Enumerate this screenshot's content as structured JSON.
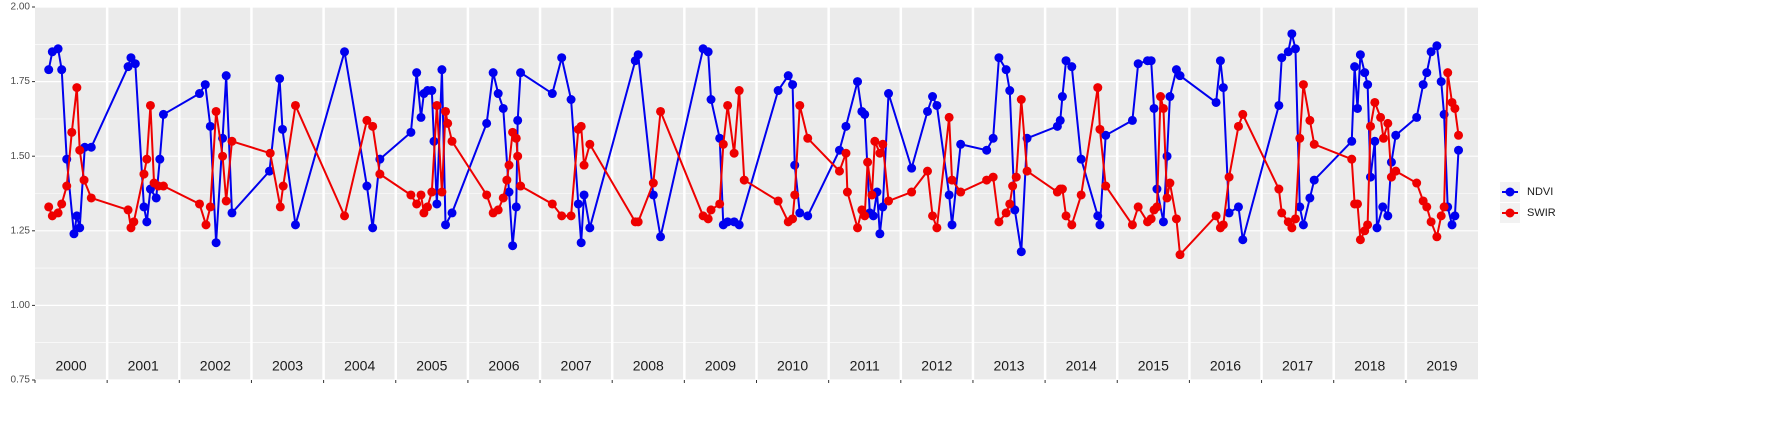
{
  "chart_data": {
    "type": "line",
    "facet_labels": [
      "2000",
      "2001",
      "2002",
      "2003",
      "2004",
      "2005",
      "2006",
      "2007",
      "2008",
      "2009",
      "2010",
      "2011",
      "2012",
      "2013",
      "2014",
      "2015",
      "2016",
      "2017",
      "2018",
      "2019"
    ],
    "xlim": [
      2000,
      2020
    ],
    "ylim": [
      0.75,
      2.0
    ],
    "yticks": [
      {
        "value": 0.75,
        "label": "0.75"
      },
      {
        "value": 1.0,
        "label": "1.00"
      },
      {
        "value": 1.25,
        "label": "1.25"
      },
      {
        "value": 1.5,
        "label": "1.50"
      },
      {
        "value": 1.75,
        "label": "1.75"
      },
      {
        "value": 2.0,
        "label": "2.00"
      }
    ],
    "grid": true,
    "legend": "right",
    "series": [
      {
        "name": "NDVI",
        "color": "#0000ee",
        "x": [
          2000.19,
          2000.24,
          2000.32,
          2000.37,
          2000.44,
          2000.54,
          2000.58,
          2000.62,
          2000.69,
          2000.78,
          2001.29,
          2001.33,
          2001.39,
          2001.51,
          2001.55,
          2001.6,
          2001.68,
          2001.73,
          2001.78,
          2002.28,
          2002.36,
          2002.43,
          2002.51,
          2002.6,
          2002.65,
          2002.73,
          2003.25,
          2003.39,
          2003.43,
          2003.61,
          2004.29,
          2004.6,
          2004.68,
          2004.78,
          2005.21,
          2005.29,
          2005.35,
          2005.39,
          2005.44,
          2005.5,
          2005.53,
          2005.57,
          2005.64,
          2005.69,
          2005.78,
          2006.26,
          2006.35,
          2006.42,
          2006.49,
          2006.57,
          2006.62,
          2006.67,
          2006.69,
          2006.73,
          2007.17,
          2007.3,
          2007.43,
          2007.53,
          2007.57,
          2007.61,
          2007.69,
          2008.32,
          2008.36,
          2008.57,
          2008.67,
          2009.26,
          2009.33,
          2009.37,
          2009.49,
          2009.54,
          2009.6,
          2009.69,
          2009.76,
          2010.3,
          2010.44,
          2010.5,
          2010.53,
          2010.6,
          2010.71,
          2011.15,
          2011.24,
          2011.4,
          2011.46,
          2011.5,
          2011.57,
          2011.62,
          2011.67,
          2011.71,
          2011.75,
          2011.83,
          2012.15,
          2012.37,
          2012.44,
          2012.5,
          2012.67,
          2012.71,
          2012.83,
          2013.19,
          2013.28,
          2013.36,
          2013.46,
          2013.51,
          2013.58,
          2013.67,
          2013.75,
          2014.17,
          2014.21,
          2014.24,
          2014.29,
          2014.37,
          2014.5,
          2014.73,
          2014.76,
          2014.84,
          2015.21,
          2015.29,
          2015.42,
          2015.47,
          2015.51,
          2015.55,
          2015.64,
          2015.69,
          2015.73,
          2015.82,
          2015.87,
          2016.37,
          2016.43,
          2016.47,
          2016.55,
          2016.68,
          2016.74,
          2017.24,
          2017.28,
          2017.37,
          2017.42,
          2017.47,
          2017.53,
          2017.58,
          2017.67,
          2017.73,
          2018.25,
          2018.29,
          2018.33,
          2018.37,
          2018.43,
          2018.47,
          2018.51,
          2018.57,
          2018.6,
          2018.68,
          2018.75,
          2018.8,
          2018.86,
          2019.15,
          2019.24,
          2019.29,
          2019.35,
          2019.43,
          2019.49,
          2019.53,
          2019.58,
          2019.64,
          2019.68,
          2019.73
        ],
        "values": [
          1.79,
          1.85,
          1.86,
          1.79,
          1.49,
          1.24,
          1.3,
          1.26,
          1.53,
          1.53,
          1.8,
          1.83,
          1.81,
          1.33,
          1.28,
          1.39,
          1.36,
          1.49,
          1.64,
          1.71,
          1.74,
          1.6,
          1.21,
          1.56,
          1.77,
          1.31,
          1.45,
          1.76,
          1.59,
          1.27,
          1.85,
          1.4,
          1.26,
          1.49,
          1.58,
          1.78,
          1.63,
          1.71,
          1.72,
          1.72,
          1.55,
          1.34,
          1.79,
          1.27,
          1.31,
          1.61,
          1.78,
          1.71,
          1.66,
          1.38,
          1.2,
          1.33,
          1.62,
          1.78,
          1.71,
          1.83,
          1.69,
          1.34,
          1.21,
          1.37,
          1.26,
          1.82,
          1.84,
          1.37,
          1.23,
          1.86,
          1.85,
          1.69,
          1.56,
          1.27,
          1.28,
          1.28,
          1.27,
          1.72,
          1.77,
          1.74,
          1.47,
          1.31,
          1.3,
          1.52,
          1.6,
          1.75,
          1.65,
          1.64,
          1.31,
          1.3,
          1.38,
          1.24,
          1.33,
          1.71,
          1.46,
          1.65,
          1.7,
          1.67,
          1.37,
          1.27,
          1.54,
          1.52,
          1.56,
          1.83,
          1.79,
          1.72,
          1.32,
          1.18,
          1.56,
          1.6,
          1.62,
          1.7,
          1.82,
          1.8,
          1.49,
          1.3,
          1.27,
          1.57,
          1.62,
          1.81,
          1.82,
          1.82,
          1.66,
          1.39,
          1.28,
          1.5,
          1.7,
          1.79,
          1.77,
          1.68,
          1.82,
          1.73,
          1.31,
          1.33,
          1.22,
          1.67,
          1.83,
          1.85,
          1.91,
          1.86,
          1.33,
          1.27,
          1.36,
          1.42,
          1.55,
          1.8,
          1.66,
          1.84,
          1.78,
          1.74,
          1.43,
          1.55,
          1.26,
          1.33,
          1.3,
          1.48,
          1.57,
          1.63,
          1.74,
          1.78,
          1.85,
          1.87,
          1.75,
          1.64,
          1.33,
          1.27,
          1.3,
          1.52
        ]
      },
      {
        "name": "SWIR",
        "color": "#ee0000",
        "x": [
          2000.19,
          2000.24,
          2000.32,
          2000.37,
          2000.44,
          2000.51,
          2000.58,
          2000.62,
          2000.68,
          2000.78,
          2001.29,
          2001.33,
          2001.37,
          2001.51,
          2001.55,
          2001.6,
          2001.65,
          2001.71,
          2001.78,
          2002.28,
          2002.37,
          2002.43,
          2002.51,
          2002.6,
          2002.65,
          2002.73,
          2003.26,
          2003.4,
          2003.44,
          2003.61,
          2004.29,
          2004.6,
          2004.68,
          2004.78,
          2005.21,
          2005.29,
          2005.35,
          2005.39,
          2005.44,
          2005.5,
          2005.57,
          2005.64,
          2005.69,
          2005.72,
          2005.78,
          2006.26,
          2006.35,
          2006.42,
          2006.49,
          2006.54,
          2006.57,
          2006.62,
          2006.67,
          2006.69,
          2006.73,
          2007.17,
          2007.3,
          2007.43,
          2007.53,
          2007.57,
          2007.61,
          2007.69,
          2008.32,
          2008.36,
          2008.57,
          2008.67,
          2009.26,
          2009.33,
          2009.37,
          2009.49,
          2009.54,
          2009.6,
          2009.69,
          2009.76,
          2009.83,
          2010.3,
          2010.44,
          2010.5,
          2010.53,
          2010.6,
          2010.71,
          2011.15,
          2011.24,
          2011.26,
          2011.4,
          2011.46,
          2011.5,
          2011.54,
          2011.6,
          2011.64,
          2011.71,
          2011.75,
          2011.83,
          2012.15,
          2012.37,
          2012.44,
          2012.5,
          2012.67,
          2012.71,
          2012.83,
          2013.19,
          2013.28,
          2013.36,
          2013.46,
          2013.51,
          2013.55,
          2013.6,
          2013.67,
          2013.75,
          2014.17,
          2014.21,
          2014.24,
          2014.29,
          2014.37,
          2014.5,
          2014.73,
          2014.76,
          2014.84,
          2015.21,
          2015.29,
          2015.42,
          2015.47,
          2015.51,
          2015.55,
          2015.6,
          2015.64,
          2015.69,
          2015.73,
          2015.82,
          2015.87,
          2016.37,
          2016.43,
          2016.47,
          2016.55,
          2016.68,
          2016.74,
          2017.24,
          2017.28,
          2017.37,
          2017.42,
          2017.47,
          2017.53,
          2017.58,
          2017.67,
          2017.73,
          2018.25,
          2018.29,
          2018.33,
          2018.37,
          2018.43,
          2018.47,
          2018.51,
          2018.57,
          2018.65,
          2018.69,
          2018.75,
          2018.8,
          2018.86,
          2019.15,
          2019.24,
          2019.29,
          2019.35,
          2019.43,
          2019.49,
          2019.53,
          2019.58,
          2019.64,
          2019.68,
          2019.73
        ],
        "values": [
          1.33,
          1.3,
          1.31,
          1.34,
          1.4,
          1.58,
          1.73,
          1.52,
          1.42,
          1.36,
          1.32,
          1.26,
          1.28,
          1.44,
          1.49,
          1.67,
          1.41,
          1.4,
          1.4,
          1.34,
          1.27,
          1.33,
          1.65,
          1.5,
          1.35,
          1.55,
          1.51,
          1.33,
          1.4,
          1.67,
          1.3,
          1.62,
          1.6,
          1.44,
          1.37,
          1.34,
          1.37,
          1.31,
          1.33,
          1.38,
          1.67,
          1.38,
          1.65,
          1.61,
          1.55,
          1.37,
          1.31,
          1.32,
          1.36,
          1.42,
          1.47,
          1.58,
          1.56,
          1.5,
          1.4,
          1.34,
          1.3,
          1.3,
          1.59,
          1.6,
          1.47,
          1.54,
          1.28,
          1.28,
          1.41,
          1.65,
          1.3,
          1.29,
          1.32,
          1.34,
          1.54,
          1.67,
          1.51,
          1.72,
          1.42,
          1.35,
          1.28,
          1.29,
          1.37,
          1.67,
          1.56,
          1.45,
          1.51,
          1.38,
          1.26,
          1.32,
          1.3,
          1.48,
          1.37,
          1.55,
          1.51,
          1.54,
          1.35,
          1.38,
          1.45,
          1.3,
          1.26,
          1.63,
          1.42,
          1.38,
          1.42,
          1.43,
          1.28,
          1.31,
          1.34,
          1.4,
          1.43,
          1.69,
          1.45,
          1.38,
          1.39,
          1.39,
          1.3,
          1.27,
          1.37,
          1.73,
          1.59,
          1.4,
          1.27,
          1.33,
          1.28,
          1.29,
          1.32,
          1.33,
          1.7,
          1.66,
          1.36,
          1.41,
          1.29,
          1.17,
          1.3,
          1.26,
          1.27,
          1.43,
          1.6,
          1.64,
          1.39,
          1.31,
          1.28,
          1.26,
          1.29,
          1.56,
          1.74,
          1.62,
          1.54,
          1.49,
          1.34,
          1.34,
          1.22,
          1.25,
          1.27,
          1.6,
          1.68,
          1.63,
          1.56,
          1.61,
          1.43,
          1.45,
          1.41,
          1.35,
          1.33,
          1.28,
          1.23,
          1.3,
          1.33,
          1.78,
          1.68,
          1.66,
          1.57
        ]
      }
    ]
  }
}
